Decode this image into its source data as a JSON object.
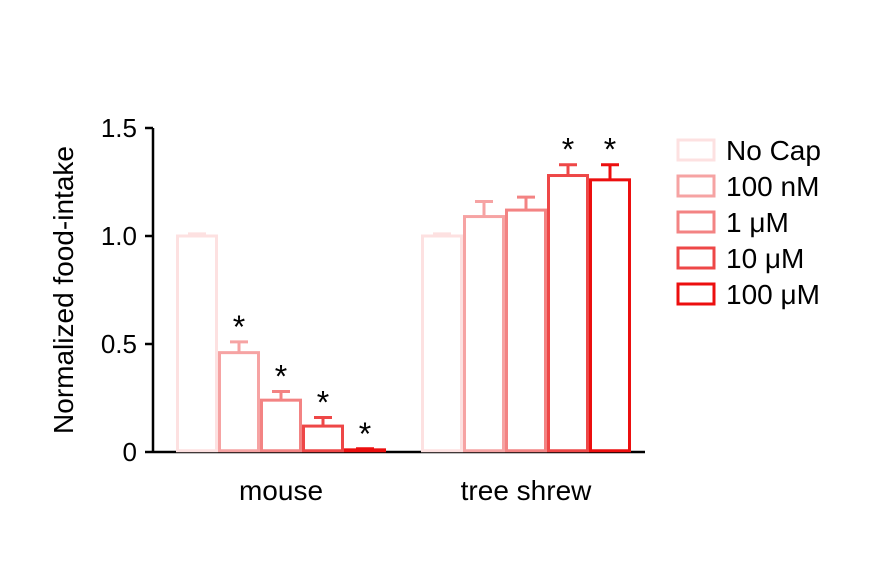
{
  "chart_data": {
    "type": "bar",
    "ylabel": "Normalized food-intake",
    "xlabel": "",
    "title": "",
    "ylim": [
      0,
      1.5
    ],
    "yticks": [
      {
        "value": 0,
        "label": "0"
      },
      {
        "value": 0.5,
        "label": "0.5"
      },
      {
        "value": 1.0,
        "label": "1.0"
      },
      {
        "value": 1.5,
        "label": "1.5"
      }
    ],
    "categories": [
      "mouse",
      "tree shrew"
    ],
    "series": [
      {
        "name": "No Cap",
        "color": "#fde1e1",
        "values": [
          1.0,
          1.0
        ],
        "errors": [
          0.01,
          0.01
        ],
        "significant": [
          false,
          false
        ]
      },
      {
        "name": "100 nM",
        "color": "#f6a3a3",
        "values": [
          0.46,
          1.09
        ],
        "errors": [
          0.05,
          0.07
        ],
        "significant": [
          true,
          false
        ]
      },
      {
        "name": "1 μM",
        "color": "#f38383",
        "values": [
          0.24,
          1.12
        ],
        "errors": [
          0.04,
          0.06
        ],
        "significant": [
          true,
          false
        ]
      },
      {
        "name": "10 μM",
        "color": "#ee4747",
        "values": [
          0.12,
          1.28
        ],
        "errors": [
          0.04,
          0.05
        ],
        "significant": [
          true,
          true
        ]
      },
      {
        "name": "100 μM",
        "color": "#ec0f0f",
        "values": [
          0.01,
          1.26
        ],
        "errors": [
          0.005,
          0.07
        ],
        "significant": [
          true,
          true
        ]
      }
    ],
    "significance_marker": "*",
    "legend_position": "right",
    "grid": false
  }
}
